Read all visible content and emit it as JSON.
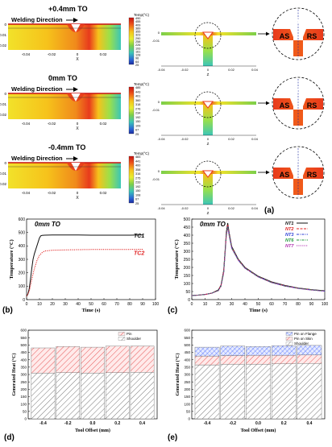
{
  "colors": {
    "hot": "#e83a1c",
    "warm": "#f6a21b",
    "yellow": "#f2e22a",
    "green": "#7ccf4a",
    "teal": "#3cc6b8",
    "blue": "#2b66d6",
    "navy": "#1b2aa0",
    "tc1": "#111111",
    "tc2": "#e02020",
    "pin": "#e03030",
    "shoulder": "#444444",
    "flange": "#3a5cff"
  },
  "panel_a": {
    "label": "(a)",
    "rows": [
      {
        "offset_label": "+0.4mm TO",
        "welding_direction": "Welding Direction",
        "colorbar_title": "Temp(°C)",
        "colorbar_ticks": [
          "490",
          "455",
          "409",
          "389",
          "355",
          "323",
          "290",
          "258",
          "226",
          "193",
          "161",
          "128",
          "96",
          "64",
          "25"
        ],
        "x_ticks": [
          "-0.04",
          "-0.02",
          "0",
          "0.02"
        ],
        "x_axis": "X",
        "y_ticks": [
          "0",
          "-0.01",
          "-0.02"
        ],
        "cs_x_ticks": [
          "-0.04",
          "-0.02",
          "0",
          "0.02",
          "0.04"
        ],
        "cs_axis": "Z",
        "cs_y_ticks": [
          "0",
          "-0.01"
        ],
        "zoom_label": "+0.4mm TO",
        "as_label": "AS",
        "rs_label": "RS"
      },
      {
        "offset_label": "0mm TO",
        "welding_direction": "Welding Direction",
        "colorbar_title": "Temp(°C)",
        "colorbar_ticks": [
          "485",
          "443",
          "401",
          "360",
          "318",
          "276",
          "234",
          "192",
          "150",
          "109",
          "67",
          "25"
        ],
        "x_ticks": [
          "-0.04",
          "-0.02",
          "0",
          "0.02"
        ],
        "x_axis": "X",
        "y_ticks": [
          "0",
          "-0.01",
          "-0.02"
        ],
        "cs_x_ticks": [
          "-0.04",
          "-0.02",
          "0",
          "0.02",
          "0.04"
        ],
        "cs_axis": "Z",
        "cs_y_ticks": [
          "0",
          "-0.01"
        ],
        "zoom_label": "0mm TO",
        "as_label": "AS",
        "rs_label": "RS"
      },
      {
        "offset_label": "-0.4mm TO",
        "welding_direction": "Welding Direction",
        "colorbar_title": "Temp(°C)",
        "colorbar_ticks": [
          "483",
          "441",
          "400",
          "358",
          "316",
          "275",
          "233",
          "192",
          "150",
          "108",
          "67",
          "25"
        ],
        "x_ticks": [
          "-0.04",
          "-0.02",
          "0",
          "0.02"
        ],
        "x_axis": "X",
        "y_ticks": [
          "0",
          "-0.01",
          "-0.02"
        ],
        "cs_x_ticks": [
          "-0.04",
          "-0.02",
          "0",
          "0.02",
          "0.04"
        ],
        "cs_axis": "Z",
        "cs_y_ticks": [
          "0",
          "-0.01"
        ],
        "zoom_label": "-0.4mm TO",
        "as_label": "AS",
        "rs_label": "RS"
      }
    ]
  },
  "chart_data": [
    {
      "id": "b",
      "type": "line",
      "panel_label": "(b)",
      "title": "0mm TO",
      "xlabel": "Time (s)",
      "ylabel": "Temperature (°C)",
      "xlim": [
        0,
        100
      ],
      "ylim": [
        0,
        600
      ],
      "x_ticks": [
        0,
        10,
        20,
        30,
        40,
        50,
        60,
        70,
        80,
        90,
        100
      ],
      "y_ticks": [
        0,
        100,
        200,
        300,
        400,
        500,
        600
      ],
      "series": [
        {
          "name": "TC1",
          "style": "solid",
          "color": "#111111",
          "x": [
            0,
            1,
            2,
            3,
            4,
            5,
            6,
            7,
            8,
            9,
            10,
            11,
            12,
            14,
            20,
            30,
            40,
            50,
            60,
            70,
            80,
            90
          ],
          "y": [
            25,
            40,
            80,
            150,
            230,
            300,
            340,
            370,
            400,
            430,
            460,
            475,
            478,
            480,
            482,
            481,
            481,
            480,
            480,
            480,
            480,
            481
          ]
        },
        {
          "name": "TC2",
          "style": "dotted",
          "color": "#e02020",
          "x": [
            0,
            2,
            4,
            6,
            8,
            10,
            12,
            14,
            20,
            30,
            40,
            50,
            60,
            70,
            80,
            90
          ],
          "y": [
            25,
            60,
            150,
            230,
            290,
            330,
            350,
            362,
            368,
            370,
            372,
            373,
            373,
            374,
            374,
            375
          ]
        }
      ]
    },
    {
      "id": "c",
      "type": "line",
      "panel_label": "(c)",
      "title": "0mm TO",
      "xlabel": "Time (s)",
      "ylabel": "Temperature (°C)",
      "xlim": [
        0,
        100
      ],
      "ylim": [
        0,
        500
      ],
      "x_ticks": [
        0,
        10,
        20,
        30,
        40,
        50,
        60,
        70,
        80,
        90,
        100
      ],
      "y_ticks": [
        0,
        50,
        100,
        150,
        200,
        250,
        300,
        350,
        400,
        450,
        500
      ],
      "series": [
        {
          "name": "NT1",
          "style": "solid",
          "color": "#111111",
          "x": [
            0,
            5,
            10,
            15,
            20,
            22,
            24,
            25,
            26,
            27,
            28,
            30,
            35,
            40,
            50,
            60,
            70,
            80,
            90,
            100
          ],
          "y": [
            25,
            28,
            32,
            40,
            60,
            90,
            180,
            300,
            420,
            475,
            420,
            330,
            250,
            200,
            145,
            110,
            88,
            72,
            62,
            55
          ]
        },
        {
          "name": "NT2",
          "style": "dashed",
          "color": "#e02020",
          "x": [
            0,
            5,
            10,
            15,
            20,
            22,
            24,
            25,
            26,
            27,
            28,
            30,
            35,
            40,
            50,
            60,
            70,
            80,
            90,
            100
          ],
          "y": [
            25,
            28,
            32,
            40,
            58,
            88,
            175,
            295,
            410,
            465,
            415,
            325,
            248,
            198,
            143,
            108,
            86,
            71,
            61,
            54
          ]
        },
        {
          "name": "NT3",
          "style": "dashdot",
          "color": "#2b3fd6",
          "x": [
            0,
            5,
            10,
            15,
            20,
            22,
            24,
            25,
            26,
            27,
            28,
            30,
            35,
            40,
            50,
            60,
            70,
            80,
            90,
            100
          ],
          "y": [
            25,
            28,
            32,
            40,
            57,
            85,
            170,
            290,
            405,
            455,
            410,
            322,
            246,
            196,
            142,
            107,
            85,
            70,
            60,
            53
          ]
        },
        {
          "name": "NT6",
          "style": "dashdot",
          "color": "#1f9a3a",
          "x": [
            0,
            5,
            10,
            15,
            20,
            22,
            24,
            25,
            26,
            27,
            28,
            30,
            35,
            40,
            50,
            60,
            70,
            80,
            90,
            100
          ],
          "y": [
            25,
            28,
            32,
            40,
            56,
            84,
            168,
            285,
            400,
            450,
            405,
            320,
            244,
            195,
            141,
            106,
            84,
            70,
            60,
            53
          ]
        },
        {
          "name": "NT7",
          "style": "dotted",
          "color": "#b030b0",
          "x": [
            0,
            5,
            10,
            15,
            20,
            22,
            24,
            25,
            26,
            27,
            28,
            30,
            35,
            40,
            50,
            60,
            70,
            80,
            90,
            100
          ],
          "y": [
            25,
            28,
            32,
            40,
            55,
            82,
            165,
            280,
            395,
            445,
            400,
            318,
            242,
            194,
            140,
            105,
            84,
            69,
            59,
            52
          ]
        }
      ]
    },
    {
      "id": "d",
      "type": "bar",
      "panel_label": "(d)",
      "xlabel": "Tool Offset (mm)",
      "ylabel": "Generated Heat (°C)",
      "categories": [
        "-0.4",
        "-0.2",
        "0.0",
        "0.2",
        "0.4"
      ],
      "ylim": [
        0,
        600
      ],
      "y_ticks": [
        0,
        50,
        100,
        150,
        200,
        250,
        300,
        350,
        400,
        450,
        500,
        550,
        600
      ],
      "series": [
        {
          "name": "Shoulder",
          "values": [
            310,
            312,
            310,
            312,
            315
          ]
        },
        {
          "name": "Pin",
          "values": [
            170,
            178,
            175,
            180,
            178
          ]
        }
      ]
    },
    {
      "id": "e",
      "type": "bar",
      "panel_label": "(e)",
      "xlabel": "Tool Offset (mm)",
      "ylabel": "Generated Heat (°C)",
      "categories": [
        "-0.4",
        "-0.2",
        "0.0",
        "0.2",
        "0.4"
      ],
      "ylim": [
        0,
        600
      ],
      "y_ticks": [
        0,
        50,
        100,
        150,
        200,
        250,
        300,
        350,
        400,
        450,
        500,
        550,
        600
      ],
      "series": [
        {
          "name": "Shoulder",
          "values": [
            365,
            370,
            370,
            372,
            375
          ]
        },
        {
          "name": "Pin on Skin",
          "values": [
            60,
            58,
            60,
            58,
            57
          ]
        },
        {
          "name": "Pin on Flange",
          "values": [
            60,
            65,
            60,
            65,
            65
          ]
        }
      ]
    }
  ]
}
